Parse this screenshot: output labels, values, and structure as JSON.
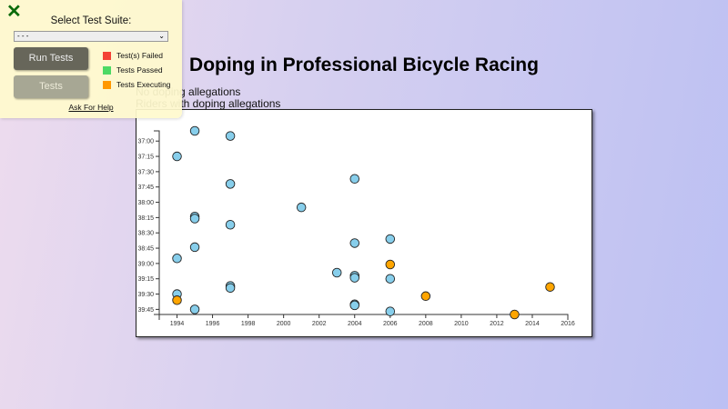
{
  "title": "Doping in Professional Bicycle Racing",
  "legend": [
    "No doping allegations",
    "Riders with doping allegations"
  ],
  "test_panel": {
    "close_icon": "x-icon",
    "select_label": "Select Test Suite:",
    "select_value": "- - -",
    "run_button": "Run Tests",
    "tests_button": "Tests",
    "keys": [
      {
        "label": "Test(s) Failed",
        "color": "#f44336"
      },
      {
        "label": "Tests Passed",
        "color": "#4cd964"
      },
      {
        "label": "Tests Executing",
        "color": "#ff9800"
      }
    ],
    "help_link": "Ask For Help"
  },
  "chart_data": {
    "type": "scatter",
    "xlabel": "",
    "ylabel": "",
    "xlim": [
      1993,
      2016
    ],
    "ylim": [
      "36:50",
      "39:50"
    ],
    "x_ticks": [
      "1994",
      "1996",
      "1998",
      "2000",
      "2002",
      "2004",
      "2006",
      "2008",
      "2010",
      "2012",
      "2014",
      "2016"
    ],
    "y_ticks": [
      "37:00",
      "37:15",
      "37:30",
      "37:45",
      "38:00",
      "38:15",
      "38:30",
      "38:45",
      "39:00",
      "39:15",
      "39:30",
      "39:45"
    ],
    "colors": {
      "no_doping": "#87ceeb",
      "doping": "#ffa500"
    },
    "points": [
      {
        "year": 1994,
        "time": "37:15",
        "doping": false
      },
      {
        "year": 1994,
        "time": "38:55",
        "doping": false
      },
      {
        "year": 1994,
        "time": "39:30",
        "doping": false
      },
      {
        "year": 1994,
        "time": "39:36",
        "doping": true
      },
      {
        "year": 1995,
        "time": "36:50",
        "doping": false
      },
      {
        "year": 1995,
        "time": "38:14",
        "doping": false
      },
      {
        "year": 1995,
        "time": "38:16",
        "doping": false
      },
      {
        "year": 1995,
        "time": "38:44",
        "doping": false
      },
      {
        "year": 1995,
        "time": "39:45",
        "doping": false
      },
      {
        "year": 1997,
        "time": "36:55",
        "doping": false
      },
      {
        "year": 1997,
        "time": "37:42",
        "doping": false
      },
      {
        "year": 1997,
        "time": "38:22",
        "doping": false
      },
      {
        "year": 1997,
        "time": "39:22",
        "doping": false
      },
      {
        "year": 1997,
        "time": "39:24",
        "doping": false
      },
      {
        "year": 2001,
        "time": "38:05",
        "doping": false
      },
      {
        "year": 2003,
        "time": "39:09",
        "doping": false
      },
      {
        "year": 2004,
        "time": "37:37",
        "doping": false
      },
      {
        "year": 2004,
        "time": "38:40",
        "doping": false
      },
      {
        "year": 2004,
        "time": "39:12",
        "doping": false
      },
      {
        "year": 2004,
        "time": "39:14",
        "doping": false
      },
      {
        "year": 2004,
        "time": "39:40",
        "doping": false
      },
      {
        "year": 2004,
        "time": "39:41",
        "doping": false
      },
      {
        "year": 2006,
        "time": "38:36",
        "doping": false
      },
      {
        "year": 2006,
        "time": "39:01",
        "doping": true
      },
      {
        "year": 2006,
        "time": "39:15",
        "doping": false
      },
      {
        "year": 2006,
        "time": "39:47",
        "doping": false
      },
      {
        "year": 2008,
        "time": "39:32",
        "doping": true
      },
      {
        "year": 2013,
        "time": "39:50",
        "doping": true
      },
      {
        "year": 2015,
        "time": "39:23",
        "doping": true
      }
    ]
  }
}
